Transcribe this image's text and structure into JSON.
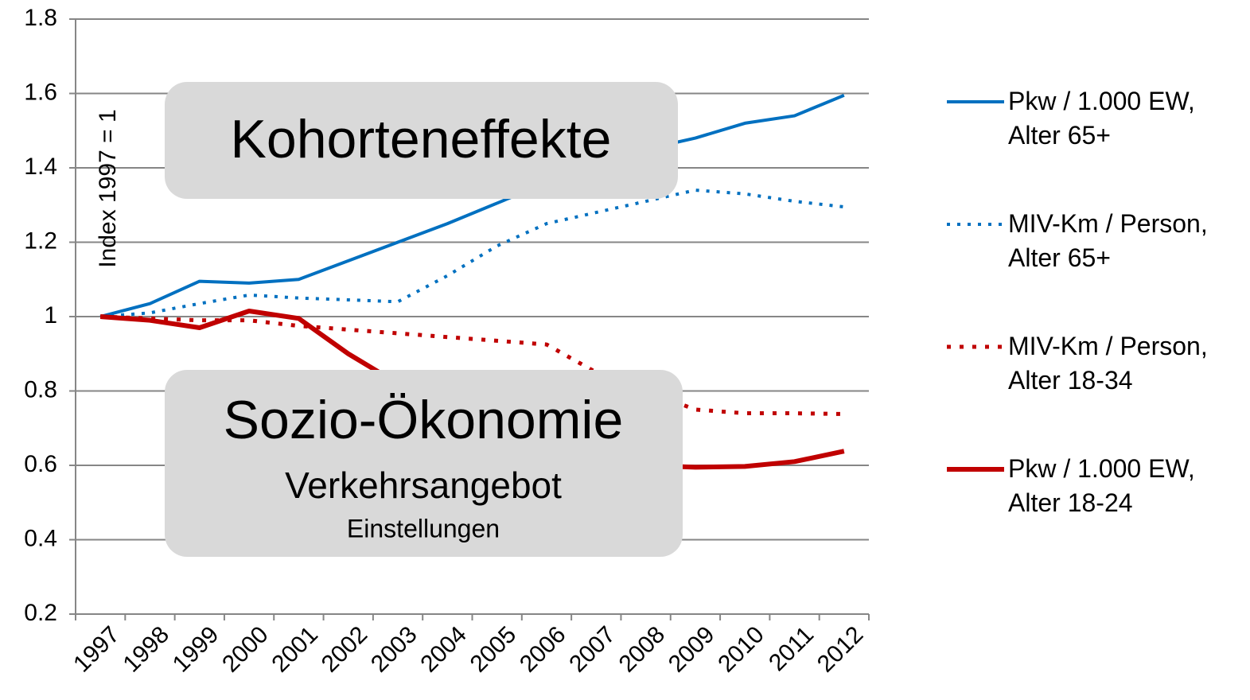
{
  "chart_data": {
    "type": "line",
    "y_label": "Index 1997 = 1",
    "annotations": [
      "Kohorteneffekte",
      "Sozio-Ökonomie",
      "Verkehrsangebot",
      "Einstellungen"
    ],
    "categories": [
      "1997",
      "1998",
      "1999",
      "2000",
      "2001",
      "2002",
      "2003",
      "2004",
      "2005",
      "2006",
      "2007",
      "2008",
      "2009",
      "2010",
      "2011",
      "2012"
    ],
    "series": [
      {
        "name": "Pkw / 1.000 EW,\nAlter 65+",
        "color": "#0070c0",
        "style": "solid",
        "values": [
          1.0,
          1.035,
          1.095,
          1.09,
          1.1,
          1.15,
          1.2,
          1.25,
          1.305,
          1.36,
          1.4,
          1.45,
          1.48,
          1.52,
          1.54,
          1.595
        ]
      },
      {
        "name": "MIV-Km / Person,\nAlter 65+",
        "color": "#0070c0",
        "style": "dotted",
        "values": [
          1.0,
          1.01,
          1.035,
          1.058,
          1.05,
          1.045,
          1.04,
          1.11,
          1.19,
          1.25,
          1.28,
          1.31,
          1.34,
          1.33,
          1.31,
          1.295
        ]
      },
      {
        "name": "MIV-Km / Person,\nAlter 18-34",
        "color": "#c00000",
        "style": "dotted",
        "values": [
          1.0,
          0.995,
          0.99,
          0.99,
          0.975,
          0.965,
          0.955,
          0.945,
          0.935,
          0.925,
          0.85,
          0.8,
          0.75,
          0.74,
          0.74,
          0.738
        ]
      },
      {
        "name": "Pkw / 1.000 EW,\nAlter 18-24",
        "color": "#c00000",
        "style": "solid",
        "values": [
          1.0,
          0.99,
          0.97,
          1.015,
          0.995,
          0.9,
          0.82,
          0.75,
          0.7,
          0.66,
          0.62,
          0.6,
          0.595,
          0.597,
          0.61,
          0.638
        ]
      }
    ],
    "ylim": [
      0.2,
      1.8
    ],
    "yticks": [
      0.2,
      0.4,
      0.6,
      0.8,
      1,
      1.2,
      1.4,
      1.6,
      1.8
    ],
    "grid": true,
    "legend": "right"
  }
}
